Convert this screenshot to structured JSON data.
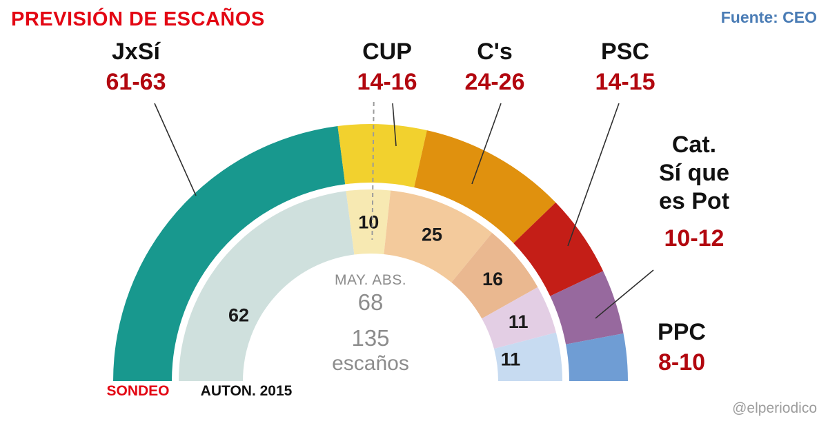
{
  "header": {
    "title": "PREVISIÓN DE ESCAÑOS",
    "source": "Fuente: CEO"
  },
  "colors": {
    "title_red": "#e30613",
    "source_blue": "#4a7cb5",
    "range_red": "#b2070f",
    "name_black": "#111111",
    "center_gray": "#8c8c8c",
    "credit_gray": "#9d9d9d",
    "sondeo_red": "#e30613",
    "auton_black": "#111111",
    "leader_line": "#2f2f2f",
    "majority_line": "#9b9b9b",
    "inner_value_black": "#1a1a1a"
  },
  "chart_data": {
    "type": "half-donut",
    "title": "PREVISIÓN DE ESCAÑOS",
    "total_seats": 135,
    "majority_seats": 68,
    "center": {
      "majority_label": "MAY. ABS.",
      "majority_value": "68",
      "total_value": "135",
      "total_unit": "escaños"
    },
    "rings": [
      {
        "id": "sondeo",
        "label": "SONDEO",
        "segments": [
          {
            "slug": "jxsi",
            "party": "JxSí",
            "range": "61-63",
            "seats": 62,
            "color": "#18988e"
          },
          {
            "slug": "cup",
            "party": "CUP",
            "range": "14-16",
            "seats": 15,
            "color": "#f2d12e"
          },
          {
            "slug": "cs",
            "party": "C's",
            "range": "24-26",
            "seats": 25,
            "color": "#e0910e"
          },
          {
            "slug": "psc",
            "party": "PSC",
            "range": "14-15",
            "seats": 14,
            "color": "#c41e17"
          },
          {
            "slug": "catsiqueespot",
            "party": "Cat. Sí que es Pot",
            "name_lines": [
              "Cat.",
              "Sí que",
              "es Pot"
            ],
            "range": "10-12",
            "seats": 11,
            "color": "#97699e"
          },
          {
            "slug": "ppc",
            "party": "PPC",
            "range": "8-10",
            "seats": 8,
            "color": "#6f9dd4"
          }
        ]
      },
      {
        "id": "auton-2015",
        "label": "AUTON. 2015",
        "segments": [
          {
            "slug": "jxsi-2015",
            "value": "62",
            "seats": 62,
            "color": "#cfe0dd"
          },
          {
            "slug": "cup-2015",
            "value": "10",
            "seats": 10,
            "color": "#f7e9b2"
          },
          {
            "slug": "cs-2015",
            "value": "25",
            "seats": 25,
            "color": "#f3ca9c"
          },
          {
            "slug": "psc-2015",
            "value": "16",
            "seats": 16,
            "color": "#eab890"
          },
          {
            "slug": "catsique-2015",
            "value": "11",
            "seats": 11,
            "color": "#e3cee4"
          },
          {
            "slug": "ppc-2015",
            "value": "11",
            "seats": 11,
            "color": "#c7dbf1"
          }
        ]
      }
    ]
  },
  "footer": {
    "credit": "@elperiodico"
  }
}
